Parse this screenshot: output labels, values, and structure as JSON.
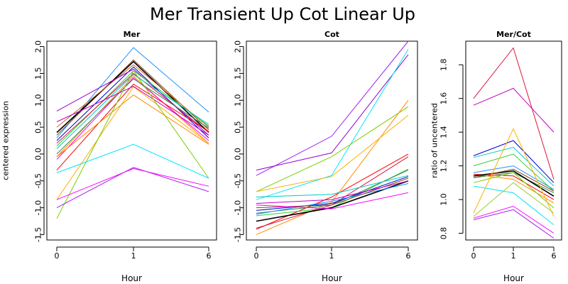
{
  "title": "Mer Transient Up Cot Linear Up",
  "chart_data": [
    {
      "type": "line",
      "title": "Mer",
      "xlabel": "Hour",
      "ylabel": "centered expression",
      "x_ticks": [
        "0",
        "1",
        "6"
      ],
      "y_ticks": [
        "-1.5",
        "-1.0",
        "-0.5",
        "0.0",
        "0.5",
        "1.0",
        "1.5",
        "2.0"
      ],
      "ylim": [
        -1.6,
        2.1
      ],
      "series": [
        {
          "color": "#1E90FF",
          "values": [
            0.3,
            1.98,
            0.78
          ]
        },
        {
          "color": "#8B4513",
          "values": [
            0.35,
            1.75,
            0.45
          ]
        },
        {
          "color": "#000000",
          "values": [
            0.4,
            1.72,
            0.4
          ]
        },
        {
          "color": "#D2691E",
          "values": [
            0.5,
            1.66,
            0.5
          ]
        },
        {
          "color": "#0000CD",
          "values": [
            0.25,
            1.62,
            0.3
          ]
        },
        {
          "color": "#9400D3",
          "values": [
            0.8,
            1.58,
            0.35
          ]
        },
        {
          "color": "#32CD32",
          "values": [
            0.15,
            1.55,
            0.52
          ]
        },
        {
          "color": "#DC143C",
          "values": [
            0.2,
            1.5,
            0.4
          ]
        },
        {
          "color": "#00C8C8",
          "values": [
            0.1,
            1.48,
            0.55
          ]
        },
        {
          "color": "#FF8C00",
          "values": [
            -0.05,
            1.45,
            0.2
          ]
        },
        {
          "color": "#FF00FF",
          "values": [
            -0.1,
            1.42,
            0.25
          ]
        },
        {
          "color": "#2E8B57",
          "values": [
            0.0,
            1.4,
            0.48
          ]
        },
        {
          "color": "#FF0000",
          "values": [
            -0.3,
            1.3,
            0.42
          ]
        },
        {
          "color": "#FFB000",
          "values": [
            -0.85,
            1.25,
            0.2
          ]
        },
        {
          "color": "#C000C0",
          "values": [
            0.6,
            1.26,
            0.35
          ]
        },
        {
          "color": "#FF8000",
          "values": [
            -0.05,
            1.1,
            0.18
          ]
        },
        {
          "color": "#7CCD00",
          "values": [
            -1.2,
            1.55,
            -0.45
          ]
        },
        {
          "color": "#00E5FF",
          "values": [
            -0.35,
            0.18,
            -0.45
          ]
        },
        {
          "color": "#A020F0",
          "values": [
            -1.0,
            -0.25,
            -0.7
          ]
        },
        {
          "color": "#FF00FF",
          "values": [
            -0.85,
            -0.27,
            -0.6
          ]
        }
      ]
    },
    {
      "type": "line",
      "title": "Cot",
      "xlabel": "Hour",
      "x_ticks": [
        "0",
        "1",
        "6"
      ],
      "y_ticks": [
        "-1.5",
        "-1.0",
        "-0.5",
        "0.0",
        "0.5",
        "1.0",
        "1.5",
        "2.0"
      ],
      "ylim": [
        -1.6,
        2.1
      ],
      "series": [
        {
          "color": "#A020F0",
          "values": [
            -0.4,
            0.33,
            2.1
          ]
        },
        {
          "color": "#9400D3",
          "values": [
            -0.3,
            0.02,
            1.85
          ]
        },
        {
          "color": "#00E5FF",
          "values": [
            -0.85,
            -0.4,
            1.95
          ]
        },
        {
          "color": "#7CCD00",
          "values": [
            -0.7,
            -0.05,
            0.88
          ]
        },
        {
          "color": "#FF8C00",
          "values": [
            -1.5,
            -0.9,
            1.0
          ]
        },
        {
          "color": "#FFB000",
          "values": [
            -0.7,
            -0.42,
            0.72
          ]
        },
        {
          "color": "#FF0000",
          "values": [
            -1.4,
            -0.8,
            0.0
          ]
        },
        {
          "color": "#DC143C",
          "values": [
            -1.38,
            -0.95,
            -0.05
          ]
        },
        {
          "color": "#32CD32",
          "values": [
            -1.15,
            -1.0,
            -0.28
          ]
        },
        {
          "color": "#2E8B57",
          "values": [
            -1.1,
            -0.95,
            -0.3
          ]
        },
        {
          "color": "#000000",
          "values": [
            -1.25,
            -1.0,
            -0.5
          ]
        },
        {
          "color": "#0000CD",
          "values": [
            -1.05,
            -0.92,
            -0.42
          ]
        },
        {
          "color": "#1E90FF",
          "values": [
            -1.12,
            -0.88,
            -0.55
          ]
        },
        {
          "color": "#8B4513",
          "values": [
            -1.0,
            -0.95,
            -0.45
          ]
        },
        {
          "color": "#00C8C8",
          "values": [
            -0.8,
            -0.75,
            -0.4
          ]
        },
        {
          "color": "#FF00FF",
          "values": [
            -0.95,
            -1.02,
            -0.72
          ]
        },
        {
          "color": "#C000C0",
          "values": [
            -0.92,
            -0.85,
            -0.5
          ]
        }
      ]
    },
    {
      "type": "line",
      "title": "Mer/Cot",
      "xlabel": "Hour",
      "ylabel": "ratio of uncentered",
      "x_ticks": [
        "0",
        "1",
        "6"
      ],
      "y_ticks": [
        "0.8",
        "1.0",
        "1.2",
        "1.4",
        "1.6",
        "1.8"
      ],
      "ylim": [
        0.76,
        1.94
      ],
      "series": [
        {
          "color": "#DC143C",
          "values": [
            1.6,
            1.9,
            1.12
          ]
        },
        {
          "color": "#C000C0",
          "values": [
            1.56,
            1.66,
            1.4
          ]
        },
        {
          "color": "#0000CD",
          "values": [
            1.26,
            1.35,
            1.1
          ]
        },
        {
          "color": "#00C8C8",
          "values": [
            1.25,
            1.31,
            1.08
          ]
        },
        {
          "color": "#32CD32",
          "values": [
            1.2,
            1.27,
            1.05
          ]
        },
        {
          "color": "#1E90FF",
          "values": [
            1.16,
            1.2,
            1.06
          ]
        },
        {
          "color": "#2E8B57",
          "values": [
            1.13,
            1.16,
            1.04
          ]
        },
        {
          "color": "#FF8C00",
          "values": [
            1.15,
            1.12,
            0.98
          ]
        },
        {
          "color": "#FF0000",
          "values": [
            1.15,
            1.14,
            1.0
          ]
        },
        {
          "color": "#000000",
          "values": [
            1.14,
            1.17,
            1.02
          ]
        },
        {
          "color": "#8B4513",
          "values": [
            1.13,
            1.18,
            1.05
          ]
        },
        {
          "color": "#00E5FF",
          "values": [
            1.08,
            1.04,
            0.85
          ]
        },
        {
          "color": "#7CCD00",
          "values": [
            1.1,
            1.16,
            0.95
          ]
        },
        {
          "color": "#FFB000",
          "values": [
            0.92,
            1.42,
            0.9
          ]
        },
        {
          "color": "#9ACD32",
          "values": [
            0.9,
            1.1,
            0.92
          ]
        },
        {
          "color": "#FF00FF",
          "values": [
            0.89,
            0.96,
            0.8
          ]
        },
        {
          "color": "#A020F0",
          "values": [
            0.88,
            0.94,
            0.77
          ]
        }
      ]
    }
  ]
}
